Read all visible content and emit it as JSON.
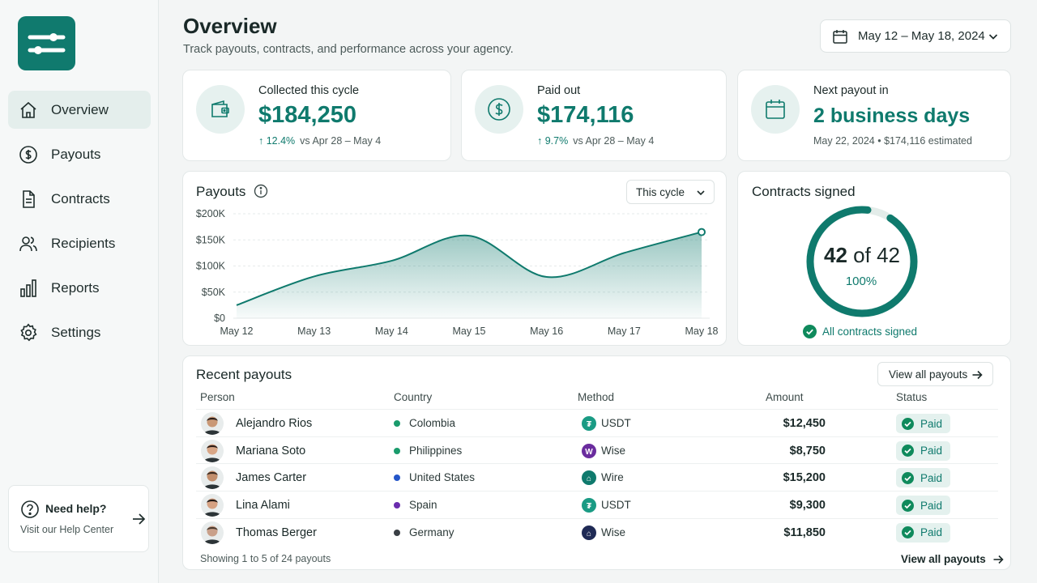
{
  "sidebar": {
    "items": [
      {
        "label": "Overview",
        "icon": "home-icon",
        "active": true
      },
      {
        "label": "Payouts",
        "icon": "dollar-circle-icon"
      },
      {
        "label": "Contracts",
        "icon": "document-icon"
      },
      {
        "label": "Recipients",
        "icon": "users-icon"
      },
      {
        "label": "Reports",
        "icon": "bar-chart-icon"
      },
      {
        "label": "Settings",
        "icon": "gear-icon"
      }
    ],
    "help": {
      "title": "Need help?",
      "subtitle": "Visit our Help Center"
    }
  },
  "header": {
    "title": "Overview",
    "subtitle": "Track payouts, contracts, and performance across your agency.",
    "date_range": "May 12 – May 18, 2024"
  },
  "kpis": {
    "collected": {
      "label": "Collected this cycle",
      "value": "$184,250",
      "change": "↑ 12.4%",
      "compare": "vs Apr 28 – May 4"
    },
    "paid": {
      "label": "Paid out",
      "value": "$174,116",
      "change": "↑ 9.7%",
      "compare": "vs Apr 28 – May 4"
    },
    "next": {
      "label": "Next payout in",
      "value": "2 business days",
      "detail": "May 22, 2024 • $174,116 estimated"
    }
  },
  "payouts_chart": {
    "title": "Payouts",
    "period_selector": "This cycle"
  },
  "chart_data": {
    "type": "area",
    "title": "Payouts",
    "categories": [
      "May 12",
      "May 13",
      "May 14",
      "May 15",
      "May 16",
      "May 17",
      "May 18"
    ],
    "series": [
      {
        "values": [
          25000,
          80000,
          110000,
          158000,
          79000,
          125000,
          165000
        ]
      }
    ],
    "y_ticks": [
      "$0",
      "$50K",
      "$100K",
      "$150K",
      "$200K"
    ],
    "ylim": [
      0,
      200000
    ],
    "grid": true,
    "accent": "#0f7a6d"
  },
  "contracts": {
    "title": "Contracts signed",
    "signed": "42",
    "of_label": "of",
    "total": "42",
    "percent": "100%",
    "fraction": 1.0,
    "status": "All contracts signed"
  },
  "recent": {
    "title": "Recent payouts",
    "view_all": "View all payouts",
    "columns": {
      "person": "Person",
      "country": "Country",
      "method": "Method",
      "amount": "Amount",
      "status": "Status"
    },
    "rows": [
      {
        "name": "Alejandro Rios",
        "country": "Colombia",
        "dot": "#1a9b6c",
        "method": "USDT",
        "method_icon": "tether-icon",
        "method_color": "#1a9b84",
        "amount": "$12,450",
        "status": "Paid"
      },
      {
        "name": "Mariana Soto",
        "country": "Philippines",
        "dot": "#1a9b6c",
        "method": "Wise",
        "method_icon": "wise-icon",
        "method_color": "#6a2c9e",
        "amount": "$8,750",
        "status": "Paid"
      },
      {
        "name": "James Carter",
        "country": "United States",
        "dot": "#2456c9",
        "method": "Wire",
        "method_icon": "bank-icon",
        "method_color": "#0f7a6d",
        "amount": "$15,200",
        "status": "Paid"
      },
      {
        "name": "Lina Alami",
        "country": "Spain",
        "dot": "#6a2cae",
        "method": "USDT",
        "method_icon": "tether-icon",
        "method_color": "#1a9b84",
        "amount": "$9,300",
        "status": "Paid"
      },
      {
        "name": "Thomas Berger",
        "country": "Germany",
        "dot": "#3a3f45",
        "method": "Wise",
        "method_icon": "bank-icon",
        "method_color": "#1f2a55",
        "amount": "$11,850",
        "status": "Paid"
      }
    ],
    "footer": "Showing 1 to 5 of 24 payouts",
    "footer_link": "View all payouts"
  }
}
